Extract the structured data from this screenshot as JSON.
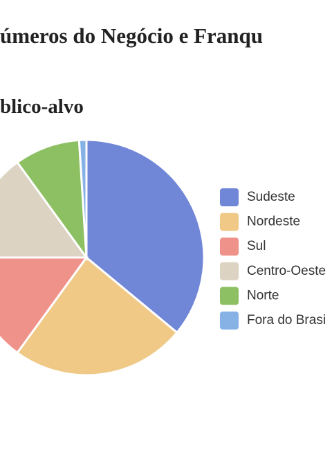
{
  "chart_data": {
    "type": "pie",
    "title": "úmeros do Negócio e Franqu",
    "subtitle": "blico-alvo",
    "categories": [
      "Sudeste",
      "Nordeste",
      "Sul",
      "Centro-Oeste",
      "Norte",
      "Fora do Brasi"
    ],
    "values": [
      36,
      24,
      15,
      15,
      9,
      1
    ],
    "colors": [
      "#7086d6",
      "#f0c987",
      "#ef928a",
      "#dcd3c3",
      "#8cc063",
      "#86b2e6"
    ],
    "legend": "right"
  }
}
